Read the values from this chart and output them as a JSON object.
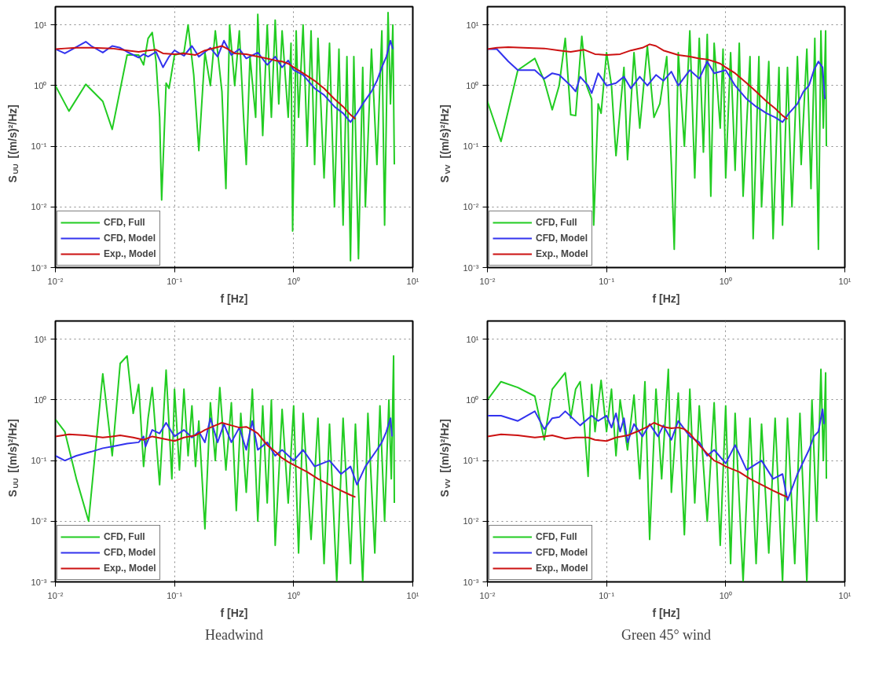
{
  "chart_data": [
    {
      "type": "line",
      "xlabel": "f [Hz]",
      "ylabel": "S$_{UU}$ [(m/s)²/Hz]",
      "log": "xy",
      "grid": true,
      "legend": "bottom left",
      "line_style": "solid",
      "marker": "none",
      "xlim": [
        0.01,
        10
      ],
      "ylim": [
        0.001,
        20
      ],
      "xticks": [
        {
          "value": 0.01,
          "label": "10⁻²"
        },
        {
          "value": 0.1,
          "label": "10⁻¹"
        },
        {
          "value": 1,
          "label": "10⁰"
        },
        {
          "value": 10,
          "label": "10¹"
        }
      ],
      "yticks": [
        {
          "value": 0.001,
          "label": "10⁻³"
        },
        {
          "value": 0.01,
          "label": "10⁻²"
        },
        {
          "value": 0.1,
          "label": "10⁻¹"
        },
        {
          "value": 1,
          "label": "10⁰"
        },
        {
          "value": 10,
          "label": "10¹"
        }
      ],
      "series": [
        {
          "name": "CFD, Full",
          "color": "#22cc22",
          "x": [
            0.01,
            0.013,
            0.018,
            0.025,
            0.03,
            0.04,
            0.05,
            0.055,
            0.06,
            0.065,
            0.07,
            0.075,
            0.078,
            0.085,
            0.09,
            0.1,
            0.12,
            0.13,
            0.145,
            0.16,
            0.18,
            0.2,
            0.22,
            0.25,
            0.27,
            0.29,
            0.32,
            0.35,
            0.38,
            0.4,
            0.43,
            0.48,
            0.5,
            0.55,
            0.6,
            0.65,
            0.7,
            0.75,
            0.8,
            0.9,
            0.95,
            0.98,
            1.05,
            1.1,
            1.2,
            1.3,
            1.4,
            1.5,
            1.6,
            1.8,
            2.0,
            2.2,
            2.4,
            2.6,
            2.8,
            3.0,
            3.2,
            3.5,
            3.8,
            4.0,
            4.5,
            5.0,
            5.5,
            5.8,
            6.2,
            6.5,
            6.8,
            7.0
          ],
          "values": [
            1.0,
            0.38,
            1.05,
            0.55,
            0.19,
            3.2,
            3.2,
            2.2,
            6,
            7.5,
            2.5,
            0.3,
            0.013,
            1.1,
            0.9,
            3.2,
            3.5,
            10,
            1.5,
            0.085,
            3.5,
            1.0,
            8,
            0.8,
            0.02,
            10,
            1.0,
            8,
            0.3,
            0.05,
            3,
            0.3,
            15,
            0.15,
            10,
            0.3,
            12,
            0.5,
            8,
            0.3,
            5,
            0.004,
            8,
            0.3,
            10,
            0.1,
            8,
            0.05,
            6,
            0.03,
            5,
            0.01,
            4,
            0.005,
            3,
            0.0013,
            3,
            0.0014,
            2,
            0.01,
            4,
            0.05,
            8,
            0.005,
            16,
            0.5,
            10,
            0.05
          ]
        },
        {
          "name": "CFD, Model",
          "color": "#3333ee",
          "x": [
            0.01,
            0.012,
            0.014,
            0.018,
            0.02,
            0.025,
            0.03,
            0.035,
            0.04,
            0.05,
            0.055,
            0.06,
            0.07,
            0.08,
            0.09,
            0.1,
            0.12,
            0.14,
            0.16,
            0.2,
            0.23,
            0.26,
            0.3,
            0.35,
            0.4,
            0.5,
            0.6,
            0.7,
            0.8,
            0.9,
            1.0,
            1.2,
            1.5,
            1.8,
            2.2,
            2.6,
            3.0,
            3.4,
            3.8,
            4.5,
            5.0,
            5.5,
            6.0,
            6.5,
            6.8
          ],
          "values": [
            4,
            3.4,
            4,
            5.3,
            4.5,
            3.5,
            4.5,
            4.2,
            3.6,
            2.9,
            3.3,
            3.0,
            3.6,
            2.0,
            3.0,
            3.8,
            3.1,
            4.5,
            3.0,
            4.2,
            3.0,
            5.5,
            3.2,
            4.0,
            2.8,
            3.5,
            2.2,
            3.0,
            2.0,
            2.6,
            1.8,
            1.5,
            0.9,
            0.7,
            0.45,
            0.35,
            0.25,
            0.35,
            0.5,
            0.8,
            1.2,
            2.0,
            3.0,
            5.5,
            4
          ]
        },
        {
          "name": "Exp., Model",
          "color": "#cc1111",
          "x": [
            0.01,
            0.012,
            0.015,
            0.02,
            0.03,
            0.04,
            0.05,
            0.06,
            0.07,
            0.08,
            0.1,
            0.12,
            0.15,
            0.18,
            0.22,
            0.25,
            0.28,
            0.32,
            0.4,
            0.5,
            0.6,
            0.7,
            0.8,
            0.9,
            1.0,
            1.2,
            1.5,
            1.8,
            2.2,
            2.6,
            3.0,
            3.3
          ],
          "values": [
            4,
            4.1,
            4.2,
            4.2,
            4.1,
            3.8,
            3.6,
            3.8,
            3.9,
            3.4,
            3.3,
            3.4,
            3.2,
            3.8,
            4.2,
            4.5,
            4.0,
            3.4,
            3.3,
            3.0,
            2.8,
            2.6,
            2.5,
            2.3,
            2.0,
            1.6,
            1.2,
            0.9,
            0.6,
            0.45,
            0.33,
            0.28
          ]
        }
      ]
    },
    {
      "type": "line",
      "xlabel": "f [Hz]",
      "ylabel": "S$_{VV}$ [(m/s)²/Hz]",
      "log": "xy",
      "grid": true,
      "legend": "bottom left",
      "line_style": "solid",
      "marker": "none",
      "xlim": [
        0.01,
        10
      ],
      "ylim": [
        0.001,
        20
      ],
      "xticks": [
        {
          "value": 0.01,
          "label": "10⁻²"
        },
        {
          "value": 0.1,
          "label": "10⁻¹"
        },
        {
          "value": 1,
          "label": "10⁰"
        },
        {
          "value": 10,
          "label": "10¹"
        }
      ],
      "yticks": [
        {
          "value": 0.001,
          "label": "10⁻³"
        },
        {
          "value": 0.01,
          "label": "10⁻²"
        },
        {
          "value": 0.1,
          "label": "10⁻¹"
        },
        {
          "value": 1,
          "label": "10⁰"
        },
        {
          "value": 10,
          "label": "10¹"
        }
      ],
      "series": [
        {
          "name": "CFD, Full",
          "color": "#22cc22",
          "x": [
            0.01,
            0.013,
            0.018,
            0.025,
            0.03,
            0.035,
            0.04,
            0.045,
            0.05,
            0.055,
            0.062,
            0.068,
            0.075,
            0.078,
            0.085,
            0.09,
            0.1,
            0.11,
            0.12,
            0.14,
            0.15,
            0.17,
            0.19,
            0.22,
            0.25,
            0.28,
            0.32,
            0.35,
            0.37,
            0.4,
            0.45,
            0.5,
            0.55,
            0.6,
            0.65,
            0.7,
            0.75,
            0.8,
            0.9,
            0.95,
            1.0,
            1.1,
            1.2,
            1.3,
            1.4,
            1.6,
            1.7,
            1.9,
            2.0,
            2.3,
            2.5,
            2.8,
            3.0,
            3.3,
            3.6,
            4.0,
            4.3,
            4.8,
            5.2,
            5.6,
            6.0,
            6.3,
            6.6,
            6.9,
            7.0
          ],
          "values": [
            0.55,
            0.12,
            1.8,
            2.8,
            1.2,
            0.4,
            1.0,
            6,
            0.33,
            0.32,
            6.5,
            1.0,
            0.6,
            0.005,
            0.5,
            0.35,
            3.5,
            1.0,
            0.07,
            2.0,
            0.06,
            3.5,
            0.2,
            4.5,
            0.3,
            0.5,
            3,
            0.05,
            0.002,
            3.5,
            0.1,
            8,
            0.03,
            6,
            0.08,
            7,
            0.015,
            5,
            0.2,
            4,
            0.03,
            3.5,
            0.04,
            5,
            0.015,
            3,
            0.003,
            3,
            0.01,
            2.5,
            0.003,
            2,
            0.005,
            2,
            0.01,
            3,
            0.05,
            4,
            0.02,
            6,
            0.002,
            8,
            0.2,
            8,
            0.1
          ]
        },
        {
          "name": "CFD, Model",
          "color": "#3333ee",
          "x": [
            0.01,
            0.012,
            0.015,
            0.018,
            0.025,
            0.03,
            0.035,
            0.04,
            0.05,
            0.055,
            0.06,
            0.07,
            0.075,
            0.085,
            0.1,
            0.12,
            0.14,
            0.16,
            0.19,
            0.22,
            0.26,
            0.3,
            0.35,
            0.4,
            0.5,
            0.6,
            0.7,
            0.8,
            1.0,
            1.2,
            1.5,
            1.8,
            2.2,
            2.6,
            3.0,
            3.4,
            4.0,
            4.5,
            5.0,
            5.5,
            6.0,
            6.5,
            6.8
          ],
          "values": [
            4,
            4,
            2.5,
            1.8,
            1.8,
            1.3,
            1.6,
            1.5,
            1.0,
            0.8,
            1.4,
            1.0,
            0.75,
            1.6,
            1.0,
            1.1,
            1.4,
            0.9,
            1.4,
            1.0,
            1.5,
            1.2,
            1.7,
            1.0,
            1.8,
            1.3,
            2.5,
            1.6,
            1.8,
            1.0,
            0.6,
            0.45,
            0.35,
            0.3,
            0.25,
            0.35,
            0.5,
            0.8,
            1.0,
            1.8,
            2.5,
            2.0,
            0.6
          ]
        },
        {
          "name": "Exp., Model",
          "color": "#cc1111",
          "x": [
            0.01,
            0.012,
            0.015,
            0.02,
            0.03,
            0.04,
            0.05,
            0.065,
            0.08,
            0.1,
            0.13,
            0.16,
            0.2,
            0.23,
            0.26,
            0.3,
            0.4,
            0.5,
            0.6,
            0.7,
            0.8,
            0.9,
            1.0,
            1.2,
            1.5,
            1.8,
            2.2,
            2.6,
            3.0,
            3.3
          ],
          "values": [
            4,
            4.2,
            4.3,
            4.2,
            4.1,
            3.8,
            3.6,
            3.9,
            3.3,
            3.2,
            3.3,
            3.8,
            4.2,
            4.8,
            4.5,
            3.8,
            3.2,
            3.0,
            2.8,
            2.7,
            2.5,
            2.3,
            2.0,
            1.6,
            1.1,
            0.8,
            0.55,
            0.42,
            0.32,
            0.28
          ]
        }
      ]
    },
    {
      "type": "line",
      "xlabel": "f [Hz]",
      "ylabel": "S$_{UU}$ [(m/s)²/Hz]",
      "log": "xy",
      "grid": true,
      "legend": "bottom left",
      "line_style": "solid",
      "marker": "none",
      "xlim": [
        0.01,
        10
      ],
      "ylim": [
        0.001,
        20
      ],
      "xticks": [
        {
          "value": 0.01,
          "label": "10⁻²"
        },
        {
          "value": 0.1,
          "label": "10⁻¹"
        },
        {
          "value": 1,
          "label": "10⁰"
        },
        {
          "value": 10,
          "label": "10¹"
        }
      ],
      "yticks": [
        {
          "value": 0.001,
          "label": "10⁻³"
        },
        {
          "value": 0.01,
          "label": "10⁻²"
        },
        {
          "value": 0.1,
          "label": "10⁻¹"
        },
        {
          "value": 1,
          "label": "10⁰"
        },
        {
          "value": 10,
          "label": "10¹"
        }
      ],
      "annotations": [
        "Headwind"
      ],
      "series": [
        {
          "name": "CFD, Full",
          "color": "#22cc22",
          "x": [
            0.01,
            0.012,
            0.015,
            0.019,
            0.025,
            0.03,
            0.035,
            0.04,
            0.045,
            0.05,
            0.055,
            0.06,
            0.065,
            0.075,
            0.085,
            0.095,
            0.1,
            0.11,
            0.12,
            0.13,
            0.14,
            0.15,
            0.16,
            0.18,
            0.2,
            0.22,
            0.24,
            0.27,
            0.3,
            0.33,
            0.36,
            0.4,
            0.45,
            0.5,
            0.55,
            0.6,
            0.65,
            0.7,
            0.8,
            0.9,
            1.0,
            1.1,
            1.2,
            1.4,
            1.6,
            1.8,
            2.0,
            2.3,
            2.6,
            3.0,
            3.3,
            3.8,
            4.2,
            4.8,
            5.3,
            5.8,
            6.3,
            6.6,
            6.9,
            7.0
          ],
          "values": [
            0.48,
            0.3,
            0.05,
            0.01,
            2.7,
            0.12,
            4,
            5.3,
            0.6,
            1.8,
            0.08,
            0.5,
            1.6,
            0.04,
            3.1,
            0.05,
            1.5,
            0.07,
            1.5,
            0.12,
            0.8,
            0.08,
            0.45,
            0.0075,
            0.9,
            0.1,
            1.6,
            0.07,
            0.9,
            0.015,
            0.6,
            0.03,
            1.5,
            0.01,
            0.8,
            0.02,
            1.0,
            0.004,
            0.7,
            0.02,
            0.8,
            0.003,
            0.6,
            0.005,
            0.5,
            0.002,
            0.4,
            0.001,
            0.5,
            0.002,
            0.4,
            0.001,
            0.6,
            0.003,
            0.8,
            0.01,
            1.0,
            0.05,
            5.3,
            0.02
          ]
        },
        {
          "name": "CFD, Model",
          "color": "#3333ee",
          "x": [
            0.01,
            0.012,
            0.015,
            0.02,
            0.025,
            0.03,
            0.04,
            0.05,
            0.055,
            0.057,
            0.065,
            0.075,
            0.085,
            0.1,
            0.12,
            0.14,
            0.16,
            0.18,
            0.2,
            0.23,
            0.26,
            0.3,
            0.35,
            0.4,
            0.45,
            0.5,
            0.6,
            0.7,
            0.8,
            1.0,
            1.2,
            1.5,
            2.0,
            2.5,
            3.0,
            3.4,
            4.0,
            5.0,
            5.5,
            6.0,
            6.5,
            6.7
          ],
          "values": [
            0.12,
            0.1,
            0.12,
            0.14,
            0.16,
            0.17,
            0.19,
            0.2,
            0.25,
            0.17,
            0.32,
            0.28,
            0.42,
            0.25,
            0.32,
            0.24,
            0.3,
            0.2,
            0.5,
            0.2,
            0.4,
            0.2,
            0.35,
            0.15,
            0.45,
            0.15,
            0.2,
            0.12,
            0.15,
            0.1,
            0.15,
            0.08,
            0.1,
            0.06,
            0.08,
            0.04,
            0.08,
            0.15,
            0.2,
            0.3,
            0.5,
            0.25
          ]
        },
        {
          "name": "Exp., Model",
          "color": "#cc1111",
          "x": [
            0.01,
            0.013,
            0.018,
            0.025,
            0.03,
            0.035,
            0.045,
            0.055,
            0.065,
            0.08,
            0.1,
            0.12,
            0.15,
            0.18,
            0.22,
            0.25,
            0.3,
            0.35,
            0.4,
            0.45,
            0.5,
            0.6,
            0.7,
            0.8,
            0.9,
            1.0,
            1.3,
            1.6,
            2.0,
            2.5,
            3.0,
            3.3
          ],
          "values": [
            0.25,
            0.27,
            0.26,
            0.24,
            0.25,
            0.26,
            0.24,
            0.22,
            0.25,
            0.23,
            0.21,
            0.24,
            0.26,
            0.32,
            0.38,
            0.42,
            0.38,
            0.35,
            0.36,
            0.32,
            0.28,
            0.18,
            0.14,
            0.11,
            0.095,
            0.085,
            0.065,
            0.05,
            0.04,
            0.032,
            0.027,
            0.025
          ]
        }
      ]
    },
    {
      "type": "line",
      "xlabel": "f [Hz]",
      "ylabel": "S$_{VV}$ [(m/s)²/Hz]",
      "log": "xy",
      "grid": true,
      "legend": "bottom left",
      "line_style": "solid",
      "marker": "none",
      "xlim": [
        0.01,
        10
      ],
      "ylim": [
        0.001,
        20
      ],
      "xticks": [
        {
          "value": 0.01,
          "label": "10⁻²"
        },
        {
          "value": 0.1,
          "label": "10⁻¹"
        },
        {
          "value": 1,
          "label": "10⁰"
        },
        {
          "value": 10,
          "label": "10¹"
        }
      ],
      "yticks": [
        {
          "value": 0.001,
          "label": "10⁻³"
        },
        {
          "value": 0.01,
          "label": "10⁻²"
        },
        {
          "value": 0.1,
          "label": "10⁻¹"
        },
        {
          "value": 1,
          "label": "10⁰"
        },
        {
          "value": 10,
          "label": "10¹"
        }
      ],
      "annotations": [
        "Green 45° wind"
      ],
      "series": [
        {
          "name": "CFD, Full",
          "color": "#22cc22",
          "x": [
            0.01,
            0.013,
            0.018,
            0.025,
            0.03,
            0.035,
            0.045,
            0.05,
            0.055,
            0.06,
            0.065,
            0.07,
            0.075,
            0.08,
            0.09,
            0.1,
            0.11,
            0.12,
            0.13,
            0.15,
            0.17,
            0.19,
            0.21,
            0.23,
            0.26,
            0.29,
            0.33,
            0.35,
            0.4,
            0.45,
            0.5,
            0.55,
            0.6,
            0.7,
            0.8,
            0.9,
            1.0,
            1.1,
            1.2,
            1.4,
            1.6,
            1.8,
            2.0,
            2.3,
            2.6,
            3.0,
            3.3,
            3.8,
            4.2,
            4.8,
            5.3,
            5.8,
            6.3,
            6.6,
            6.9,
            7.0
          ],
          "values": [
            1.0,
            2.0,
            1.6,
            1.15,
            0.22,
            1.5,
            2.8,
            0.5,
            1.5,
            2.0,
            0.4,
            0.055,
            1.8,
            0.3,
            2.1,
            0.3,
            1.5,
            0.12,
            1.0,
            0.15,
            1.2,
            0.05,
            2.0,
            0.005,
            1.5,
            0.05,
            3.2,
            0.03,
            1.3,
            0.006,
            1.5,
            0.02,
            0.8,
            0.01,
            0.9,
            0.004,
            0.8,
            0.002,
            0.6,
            0.001,
            0.5,
            0.002,
            0.4,
            0.003,
            0.5,
            0.001,
            0.5,
            0.002,
            0.6,
            0.001,
            1.0,
            0.01,
            3.2,
            0.1,
            2.8,
            0.05
          ]
        },
        {
          "name": "CFD, Model",
          "color": "#3333ee",
          "x": [
            0.01,
            0.013,
            0.018,
            0.025,
            0.03,
            0.035,
            0.04,
            0.045,
            0.06,
            0.075,
            0.085,
            0.1,
            0.11,
            0.12,
            0.13,
            0.14,
            0.15,
            0.17,
            0.2,
            0.23,
            0.27,
            0.3,
            0.35,
            0.4,
            0.5,
            0.6,
            0.7,
            0.8,
            1.0,
            1.2,
            1.5,
            2.0,
            2.5,
            3.0,
            3.3,
            4.0,
            5.0,
            5.5,
            6.0,
            6.5,
            6.7
          ],
          "values": [
            0.55,
            0.55,
            0.45,
            0.65,
            0.33,
            0.5,
            0.52,
            0.65,
            0.38,
            0.55,
            0.45,
            0.55,
            0.35,
            0.6,
            0.3,
            0.5,
            0.2,
            0.4,
            0.25,
            0.4,
            0.25,
            0.38,
            0.22,
            0.45,
            0.25,
            0.2,
            0.12,
            0.15,
            0.09,
            0.18,
            0.07,
            0.1,
            0.05,
            0.06,
            0.022,
            0.06,
            0.15,
            0.25,
            0.3,
            0.7,
            0.4
          ]
        },
        {
          "name": "Exp., Model",
          "color": "#cc1111",
          "x": [
            0.01,
            0.013,
            0.018,
            0.025,
            0.03,
            0.035,
            0.045,
            0.055,
            0.07,
            0.08,
            0.1,
            0.12,
            0.15,
            0.18,
            0.22,
            0.25,
            0.3,
            0.35,
            0.4,
            0.45,
            0.5,
            0.6,
            0.7,
            0.8,
            0.9,
            1.0,
            1.3,
            1.6,
            2.0,
            2.5,
            3.0,
            3.3
          ],
          "values": [
            0.25,
            0.27,
            0.26,
            0.24,
            0.25,
            0.26,
            0.23,
            0.24,
            0.24,
            0.22,
            0.21,
            0.24,
            0.26,
            0.3,
            0.36,
            0.42,
            0.36,
            0.34,
            0.35,
            0.33,
            0.28,
            0.18,
            0.13,
            0.1,
            0.09,
            0.08,
            0.065,
            0.05,
            0.04,
            0.032,
            0.027,
            0.025
          ]
        }
      ]
    }
  ]
}
